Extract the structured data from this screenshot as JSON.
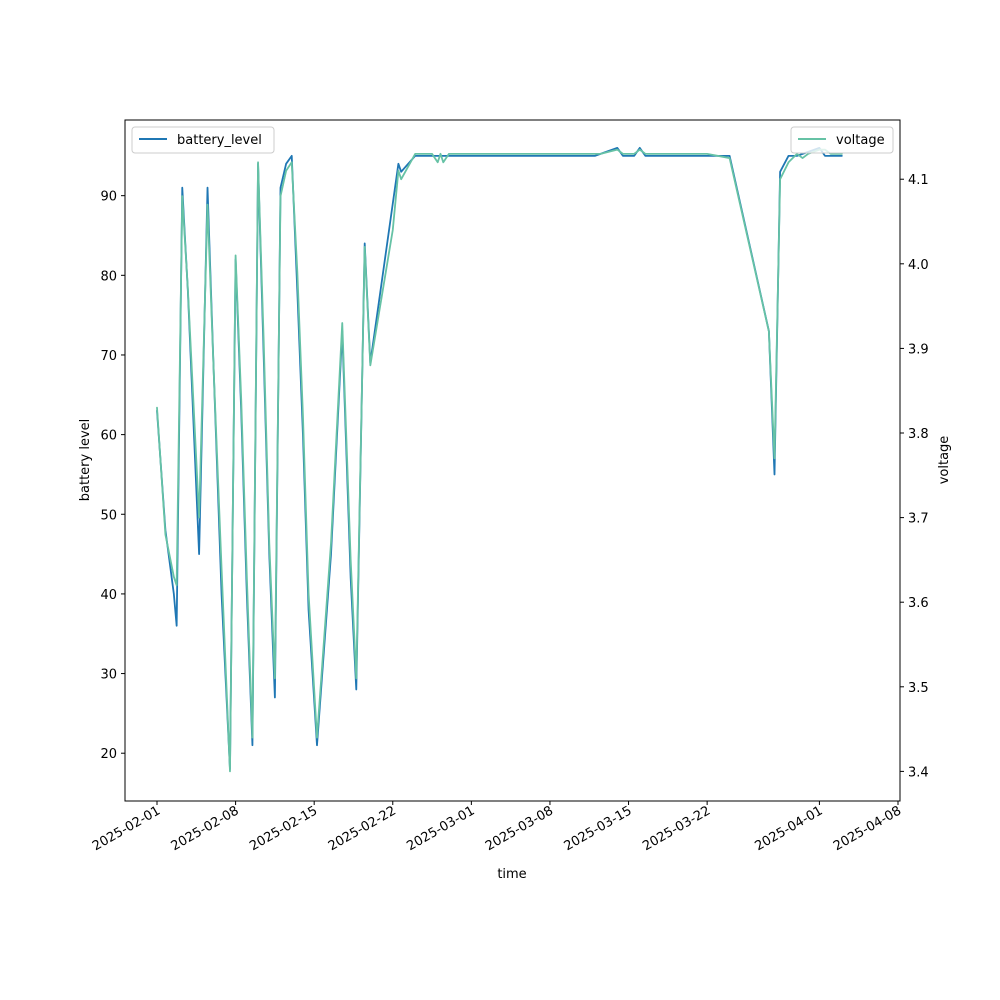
{
  "chart_data": {
    "type": "line",
    "xlabel": "time",
    "ylabel_left": "battery level",
    "ylabel_right": "voltage",
    "x_ticks": [
      "2025-02-01",
      "2025-02-08",
      "2025-02-15",
      "2025-02-22",
      "2025-03-01",
      "2025-03-08",
      "2025-03-15",
      "2025-03-22",
      "2025-04-01",
      "2025-04-08"
    ],
    "left_axis": {
      "ylim": [
        14,
        99.5
      ],
      "ticks": [
        20,
        30,
        40,
        50,
        60,
        70,
        80,
        90
      ]
    },
    "right_axis": {
      "ylim": [
        3.365,
        4.17
      ],
      "ticks": [
        3.4,
        3.5,
        3.6,
        3.7,
        3.8,
        3.9,
        4.0,
        4.1
      ]
    },
    "legends": [
      {
        "label": "battery_level",
        "position": "upper-left"
      },
      {
        "label": "voltage",
        "position": "upper-right"
      }
    ],
    "series": [
      {
        "name": "battery_level",
        "axis": "left",
        "color": "#1f77b4",
        "points": [
          [
            "2025-02-01 00:00",
            63
          ],
          [
            "2025-02-01 18:00",
            48
          ],
          [
            "2025-02-02 12:00",
            40
          ],
          [
            "2025-02-02 18:00",
            36
          ],
          [
            "2025-02-03 06:00",
            91
          ],
          [
            "2025-02-03 18:00",
            78
          ],
          [
            "2025-02-04 18:00",
            45
          ],
          [
            "2025-02-05 12:00",
            91
          ],
          [
            "2025-02-06 00:00",
            70
          ],
          [
            "2025-02-06 18:00",
            40
          ],
          [
            "2025-02-07 12:00",
            18
          ],
          [
            "2025-02-08 00:00",
            82
          ],
          [
            "2025-02-08 12:00",
            63
          ],
          [
            "2025-02-09 00:00",
            40
          ],
          [
            "2025-02-09 12:00",
            21
          ],
          [
            "2025-02-10 00:00",
            94
          ],
          [
            "2025-02-10 12:00",
            70
          ],
          [
            "2025-02-11 00:00",
            45
          ],
          [
            "2025-02-11 12:00",
            27
          ],
          [
            "2025-02-12 00:00",
            91
          ],
          [
            "2025-02-12 12:00",
            94
          ],
          [
            "2025-02-13 00:00",
            95
          ],
          [
            "2025-02-13 12:00",
            78
          ],
          [
            "2025-02-14 00:00",
            60
          ],
          [
            "2025-02-14 12:00",
            38
          ],
          [
            "2025-02-15 06:00",
            21
          ],
          [
            "2025-02-16 12:00",
            45
          ],
          [
            "2025-02-17 12:00",
            73
          ],
          [
            "2025-02-18 06:00",
            42
          ],
          [
            "2025-02-18 18:00",
            28
          ],
          [
            "2025-02-19 12:00",
            84
          ],
          [
            "2025-02-20 00:00",
            69
          ],
          [
            "2025-02-22 00:00",
            89
          ],
          [
            "2025-02-22 12:00",
            94
          ],
          [
            "2025-02-22 18:00",
            93
          ],
          [
            "2025-02-24 00:00",
            95
          ],
          [
            "2025-02-26 00:00",
            95
          ],
          [
            "2025-03-01 00:00",
            95
          ],
          [
            "2025-03-06 00:00",
            95
          ],
          [
            "2025-03-12 00:00",
            95
          ],
          [
            "2025-03-14 00:00",
            96
          ],
          [
            "2025-03-14 12:00",
            95
          ],
          [
            "2025-03-15 12:00",
            95
          ],
          [
            "2025-03-16 00:00",
            96
          ],
          [
            "2025-03-16 12:00",
            95
          ],
          [
            "2025-03-20 00:00",
            95
          ],
          [
            "2025-03-24 00:00",
            95
          ],
          [
            "2025-03-27 12:00",
            73
          ],
          [
            "2025-03-28 00:00",
            55
          ],
          [
            "2025-03-28 12:00",
            93
          ],
          [
            "2025-03-29 06:00",
            95
          ],
          [
            "2025-03-30 00:00",
            95
          ],
          [
            "2025-04-01 00:00",
            96
          ],
          [
            "2025-04-01 12:00",
            95
          ],
          [
            "2025-04-03 00:00",
            95
          ]
        ]
      },
      {
        "name": "voltage",
        "axis": "right",
        "color": "#66c2a5",
        "points": [
          [
            "2025-02-01 00:00",
            3.83
          ],
          [
            "2025-02-01 18:00",
            3.68
          ],
          [
            "2025-02-02 12:00",
            3.63
          ],
          [
            "2025-02-02 18:00",
            3.62
          ],
          [
            "2025-02-03 06:00",
            4.08
          ],
          [
            "2025-02-03 18:00",
            3.97
          ],
          [
            "2025-02-04 18:00",
            3.7
          ],
          [
            "2025-02-05 12:00",
            4.07
          ],
          [
            "2025-02-06 00:00",
            3.89
          ],
          [
            "2025-02-06 18:00",
            3.64
          ],
          [
            "2025-02-07 12:00",
            3.4
          ],
          [
            "2025-02-08 00:00",
            4.01
          ],
          [
            "2025-02-08 12:00",
            3.84
          ],
          [
            "2025-02-09 00:00",
            3.63
          ],
          [
            "2025-02-09 12:00",
            3.44
          ],
          [
            "2025-02-10 00:00",
            4.12
          ],
          [
            "2025-02-10 12:00",
            3.91
          ],
          [
            "2025-02-11 00:00",
            3.67
          ],
          [
            "2025-02-11 12:00",
            3.51
          ],
          [
            "2025-02-12 00:00",
            4.08
          ],
          [
            "2025-02-12 12:00",
            4.11
          ],
          [
            "2025-02-13 00:00",
            4.12
          ],
          [
            "2025-02-13 12:00",
            3.99
          ],
          [
            "2025-02-14 00:00",
            3.82
          ],
          [
            "2025-02-14 12:00",
            3.61
          ],
          [
            "2025-02-15 06:00",
            3.44
          ],
          [
            "2025-02-16 12:00",
            3.67
          ],
          [
            "2025-02-17 12:00",
            3.93
          ],
          [
            "2025-02-18 06:00",
            3.65
          ],
          [
            "2025-02-18 18:00",
            3.51
          ],
          [
            "2025-02-19 12:00",
            4.02
          ],
          [
            "2025-02-20 00:00",
            3.88
          ],
          [
            "2025-02-22 00:00",
            4.04
          ],
          [
            "2025-02-22 12:00",
            4.11
          ],
          [
            "2025-02-22 18:00",
            4.1
          ],
          [
            "2025-02-24 00:00",
            4.13
          ],
          [
            "2025-02-25 12:00",
            4.13
          ],
          [
            "2025-02-26 00:00",
            4.12
          ],
          [
            "2025-02-26 06:00",
            4.13
          ],
          [
            "2025-02-26 12:00",
            4.12
          ],
          [
            "2025-02-27 00:00",
            4.13
          ],
          [
            "2025-02-28 00:00",
            4.13
          ],
          [
            "2025-02-28 12:00",
            4.13
          ],
          [
            "2025-03-01 00:00",
            4.13
          ],
          [
            "2025-03-03 00:00",
            4.13
          ],
          [
            "2025-03-06 00:00",
            4.13
          ],
          [
            "2025-03-06 12:00",
            4.13
          ],
          [
            "2025-03-09 00:00",
            4.13
          ],
          [
            "2025-03-09 12:00",
            4.13
          ],
          [
            "2025-03-10 00:00",
            4.13
          ],
          [
            "2025-03-10 12:00",
            4.13
          ],
          [
            "2025-03-11 00:00",
            4.13
          ],
          [
            "2025-03-11 12:00",
            4.13
          ],
          [
            "2025-03-12 00:00",
            4.13
          ],
          [
            "2025-03-12 12:00",
            4.13
          ],
          [
            "2025-03-14 00:00",
            4.135
          ],
          [
            "2025-03-14 12:00",
            4.13
          ],
          [
            "2025-03-15 12:00",
            4.13
          ],
          [
            "2025-03-16 00:00",
            4.135
          ],
          [
            "2025-03-16 12:00",
            4.13
          ],
          [
            "2025-03-17 00:00",
            4.13
          ],
          [
            "2025-03-20 00:00",
            4.13
          ],
          [
            "2025-03-20 12:00",
            4.13
          ],
          [
            "2025-03-22 00:00",
            4.13
          ],
          [
            "2025-03-24 00:00",
            4.125
          ],
          [
            "2025-03-27 12:00",
            3.92
          ],
          [
            "2025-03-28 00:00",
            3.77
          ],
          [
            "2025-03-28 12:00",
            4.1
          ],
          [
            "2025-03-29 06:00",
            4.12
          ],
          [
            "2025-03-30 00:00",
            4.13
          ],
          [
            "2025-03-30 12:00",
            4.125
          ],
          [
            "2025-03-31 00:00",
            4.13
          ],
          [
            "2025-04-01 00:00",
            4.135
          ],
          [
            "2025-04-01 12:00",
            4.135
          ],
          [
            "2025-04-02 00:00",
            4.13
          ],
          [
            "2025-04-03 00:00",
            4.13
          ]
        ]
      }
    ]
  }
}
